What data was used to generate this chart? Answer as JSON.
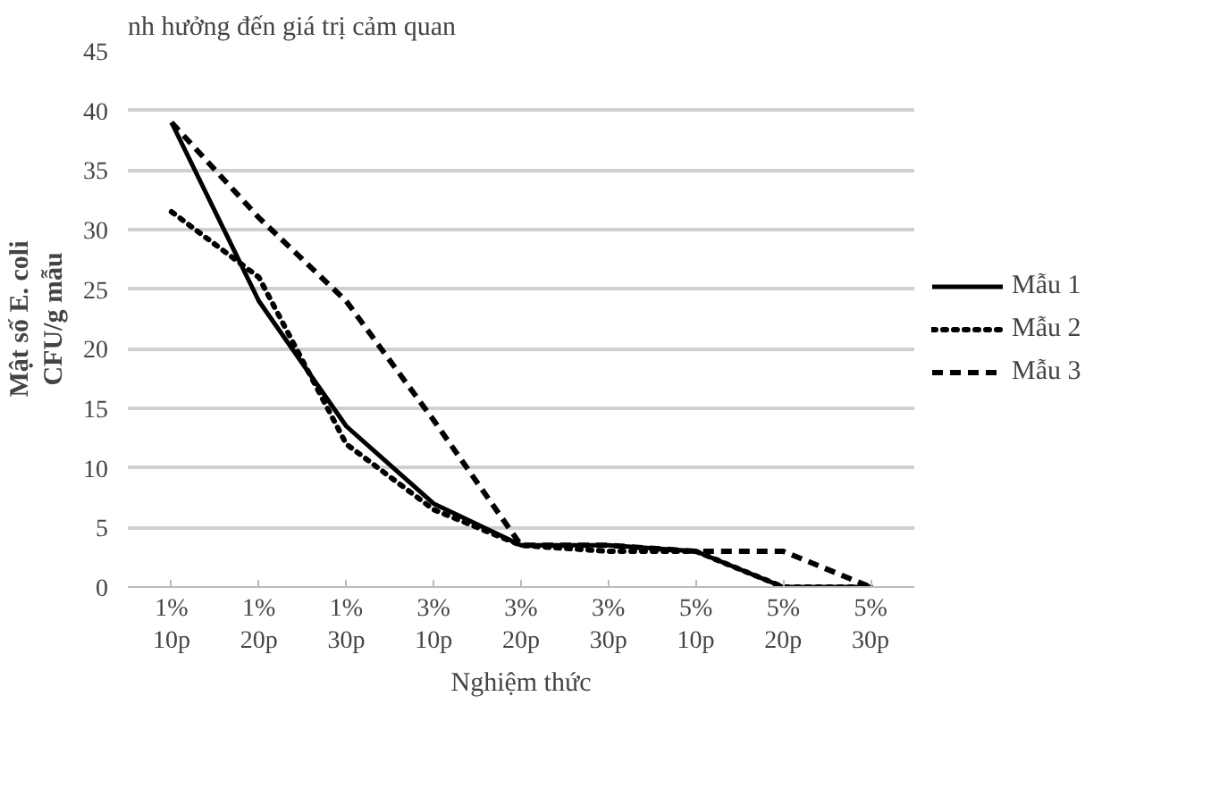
{
  "chart_data": {
    "type": "line",
    "annotations": [
      "nh hưởng đến giá trị cảm quan"
    ],
    "xlabel": "Nghiệm thức",
    "ylabel": "Mật số E. coli\nCFU/g mẫu",
    "categories": [
      "1%\n10p",
      "1%\n20p",
      "1%\n30p",
      "3%\n10p",
      "3%\n20p",
      "3%\n30p",
      "5%\n10p",
      "5%\n20p",
      "5%\n30p"
    ],
    "ylim": [
      0,
      45
    ],
    "yticks": [
      0,
      5,
      10,
      15,
      20,
      25,
      30,
      35,
      40,
      45
    ],
    "grid": "y",
    "legend": "right",
    "marker": "none",
    "series": [
      {
        "name": "Mẫu 1",
        "color": "#000000",
        "line_style": "solid",
        "values": [
          39,
          24,
          13.5,
          7,
          3.5,
          3.5,
          3,
          0,
          0
        ]
      },
      {
        "name": "Mẫu 2",
        "color": "#000000",
        "line_style": "dotted",
        "values": [
          31.5,
          26,
          12,
          6.5,
          3.5,
          3,
          3,
          0,
          0
        ]
      },
      {
        "name": "Mẫu 3",
        "color": "#000000",
        "line_style": "dashed",
        "values": [
          39,
          31,
          24,
          14,
          3.5,
          3.5,
          3,
          3,
          0
        ]
      }
    ]
  }
}
